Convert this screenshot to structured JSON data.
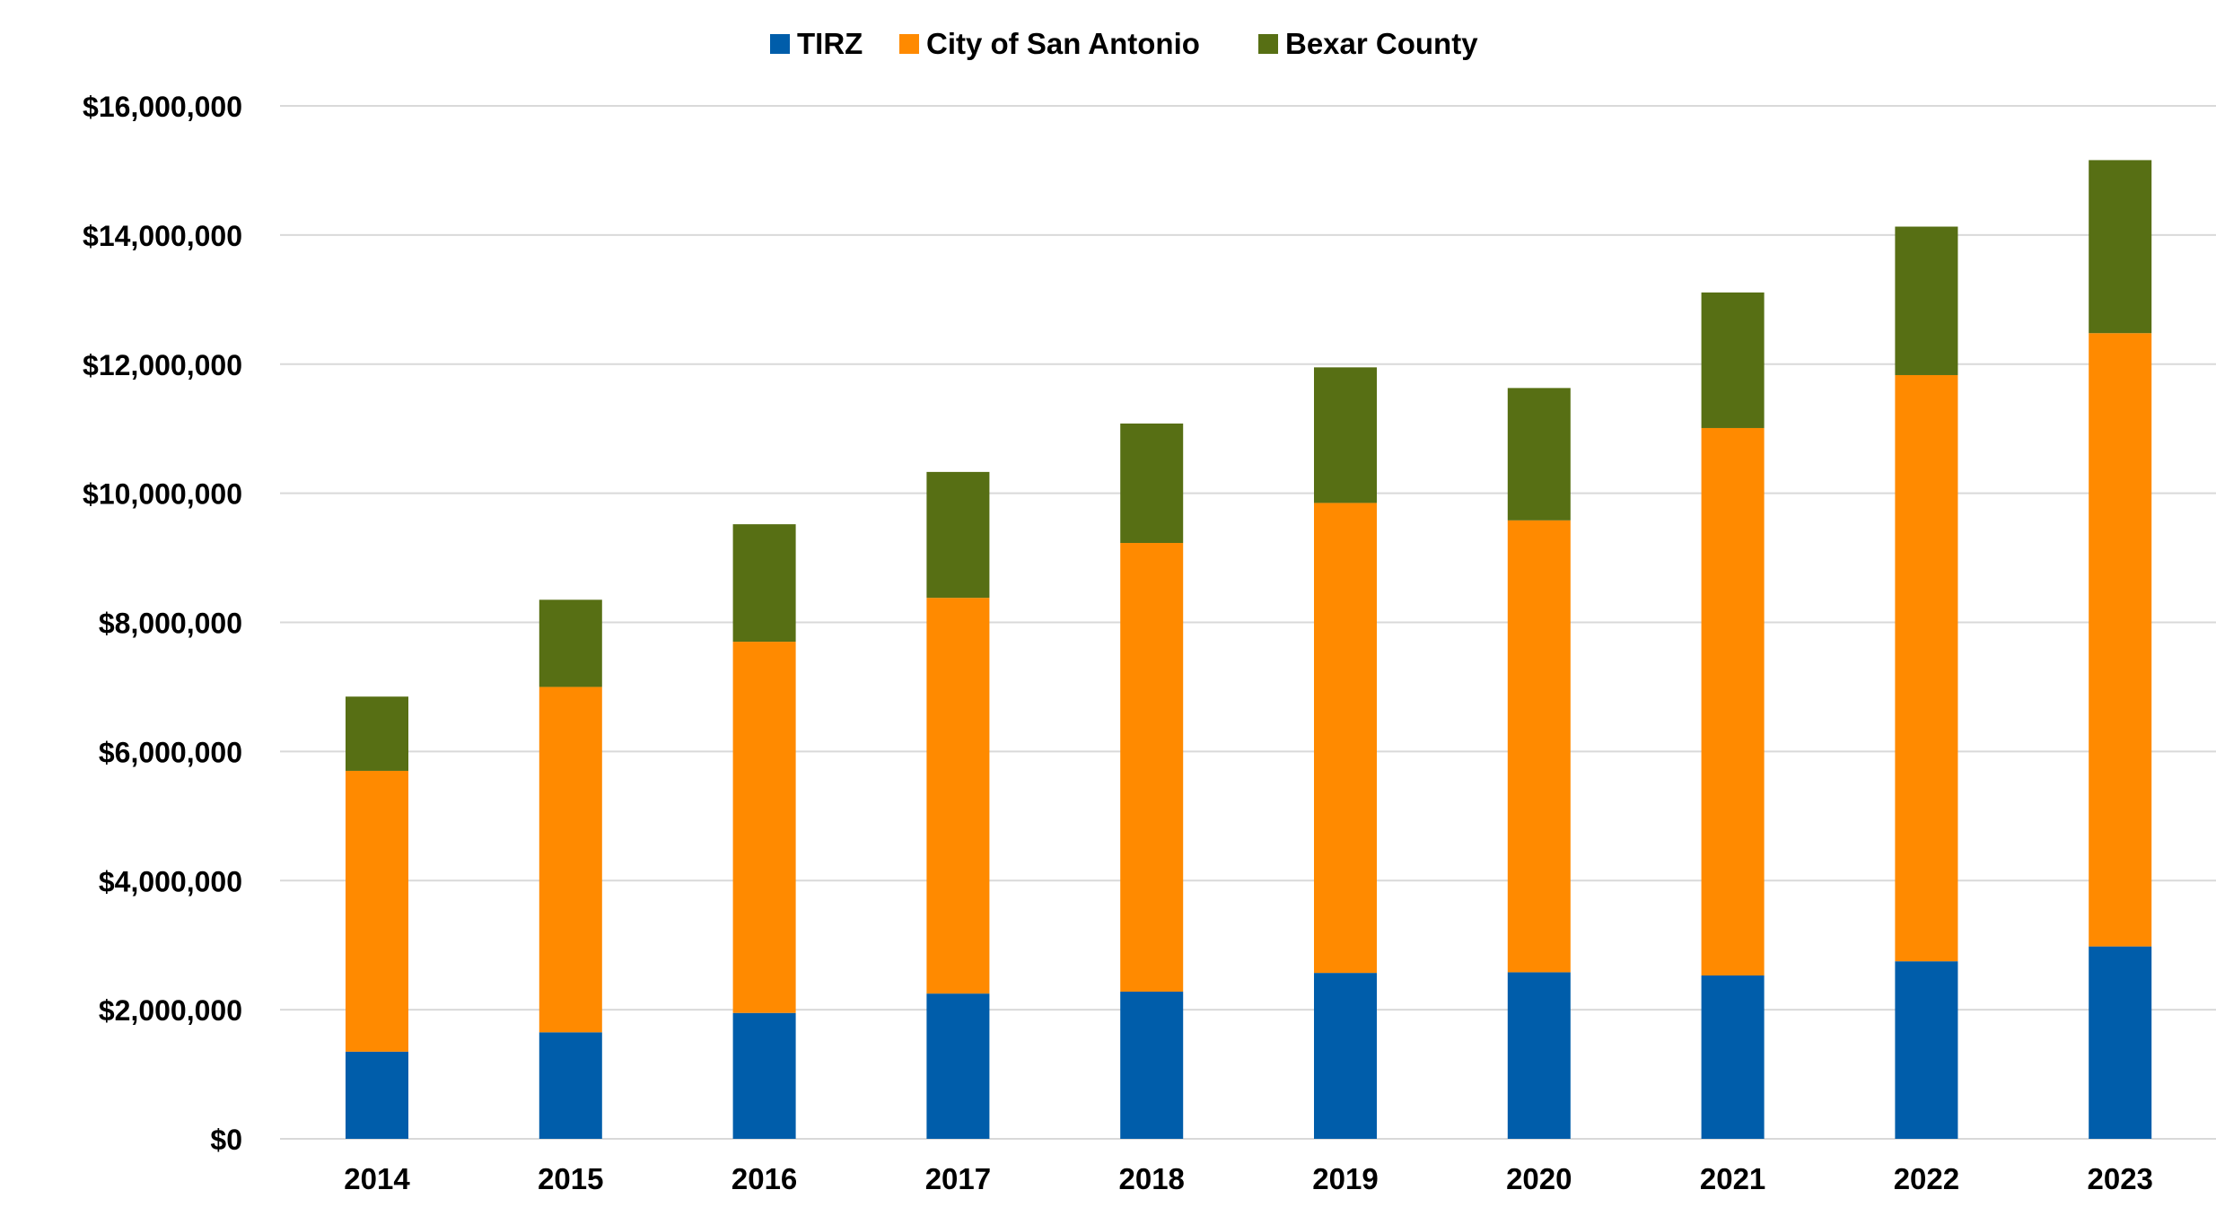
{
  "chart_data": {
    "type": "bar",
    "stacked": true,
    "title": "",
    "xlabel": "",
    "ylabel": "",
    "categories": [
      "2014",
      "2015",
      "2016",
      "2017",
      "2018",
      "2019",
      "2020",
      "2021",
      "2022",
      "2023"
    ],
    "series": [
      {
        "name": "TIRZ",
        "color": "#005DAA",
        "values": [
          1350000,
          1650000,
          1950000,
          2250000,
          2280000,
          2570000,
          2580000,
          2530000,
          2750000,
          2980000
        ]
      },
      {
        "name": "City of San Antonio",
        "color": "#FF8A00",
        "values": [
          4350000,
          5350000,
          5750000,
          6130000,
          6950000,
          7280000,
          7000000,
          8480000,
          9080000,
          9500000
        ]
      },
      {
        "name": "Bexar County",
        "color": "#576F14",
        "values": [
          1150000,
          1350000,
          1820000,
          1950000,
          1850000,
          2100000,
          2050000,
          2100000,
          2300000,
          2680000
        ]
      }
    ],
    "ylim": [
      0,
      16000000
    ],
    "y_ticks": [
      0,
      2000000,
      4000000,
      6000000,
      8000000,
      10000000,
      12000000,
      14000000,
      16000000
    ],
    "y_tick_labels": [
      "$0",
      "$2,000,000",
      "$4,000,000",
      "$6,000,000",
      "$8,000,000",
      "$10,000,000",
      "$12,000,000",
      "$14,000,000",
      "$16,000,000"
    ],
    "grid": true,
    "legend_position": "top-center"
  }
}
